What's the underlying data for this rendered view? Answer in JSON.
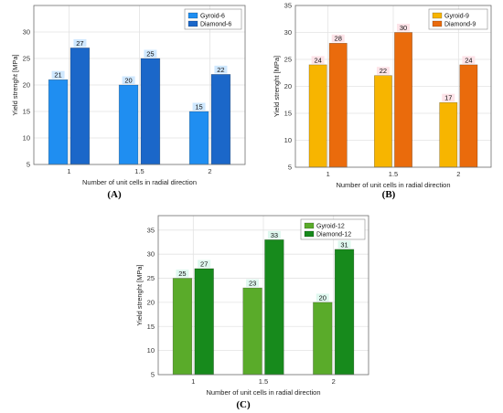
{
  "chart_data": [
    {
      "type": "bar",
      "panel_label": "(A)",
      "categories": [
        "1",
        "1.5",
        "2"
      ],
      "series": [
        {
          "name": "Gyroid-6",
          "values": [
            21,
            20,
            15
          ],
          "color": "#1f8ef1",
          "label_bg": "#cfe8ff"
        },
        {
          "name": "Diamond-6",
          "values": [
            27,
            25,
            22
          ],
          "color": "#1b67c9",
          "label_bg": "#cfe8ff"
        }
      ],
      "xlabel": "Number of unit cells in radial direction",
      "ylabel": "Yield strenght [MPa]",
      "ylim": [
        5,
        35
      ],
      "yticks": [
        5,
        10,
        15,
        20,
        25,
        30
      ],
      "grid": true,
      "legend": "top-right"
    },
    {
      "type": "bar",
      "panel_label": "(B)",
      "categories": [
        "1",
        "1.5",
        "2"
      ],
      "series": [
        {
          "name": "Gyroid-9",
          "values": [
            24,
            22,
            17
          ],
          "color": "#f7b500",
          "label_bg": "#fde3e8"
        },
        {
          "name": "Diamond-9",
          "values": [
            28,
            30,
            24
          ],
          "color": "#ea6b0c",
          "label_bg": "#fde3e8"
        }
      ],
      "xlabel": "Number of unit cells in radial direction",
      "ylabel": "Yield strenght [MPa]",
      "ylim": [
        5,
        35
      ],
      "yticks": [
        5,
        10,
        15,
        20,
        25,
        30,
        35
      ],
      "grid": true,
      "legend": "top-right"
    },
    {
      "type": "bar",
      "panel_label": "(C)",
      "categories": [
        "1",
        "1.5",
        "2"
      ],
      "series": [
        {
          "name": "Gyroid-12",
          "values": [
            25,
            23,
            20
          ],
          "color": "#5aab2a",
          "label_bg": "#dff8ef"
        },
        {
          "name": "Diamond-12",
          "values": [
            27,
            33,
            31
          ],
          "color": "#178a1c",
          "label_bg": "#dff8ef"
        }
      ],
      "xlabel": "Number of unit cells in radial direction",
      "ylabel": "Yield strenght [MPa]",
      "ylim": [
        5,
        38
      ],
      "yticks": [
        5,
        10,
        15,
        20,
        25,
        30,
        35
      ],
      "grid": true,
      "legend": "top-right"
    }
  ]
}
